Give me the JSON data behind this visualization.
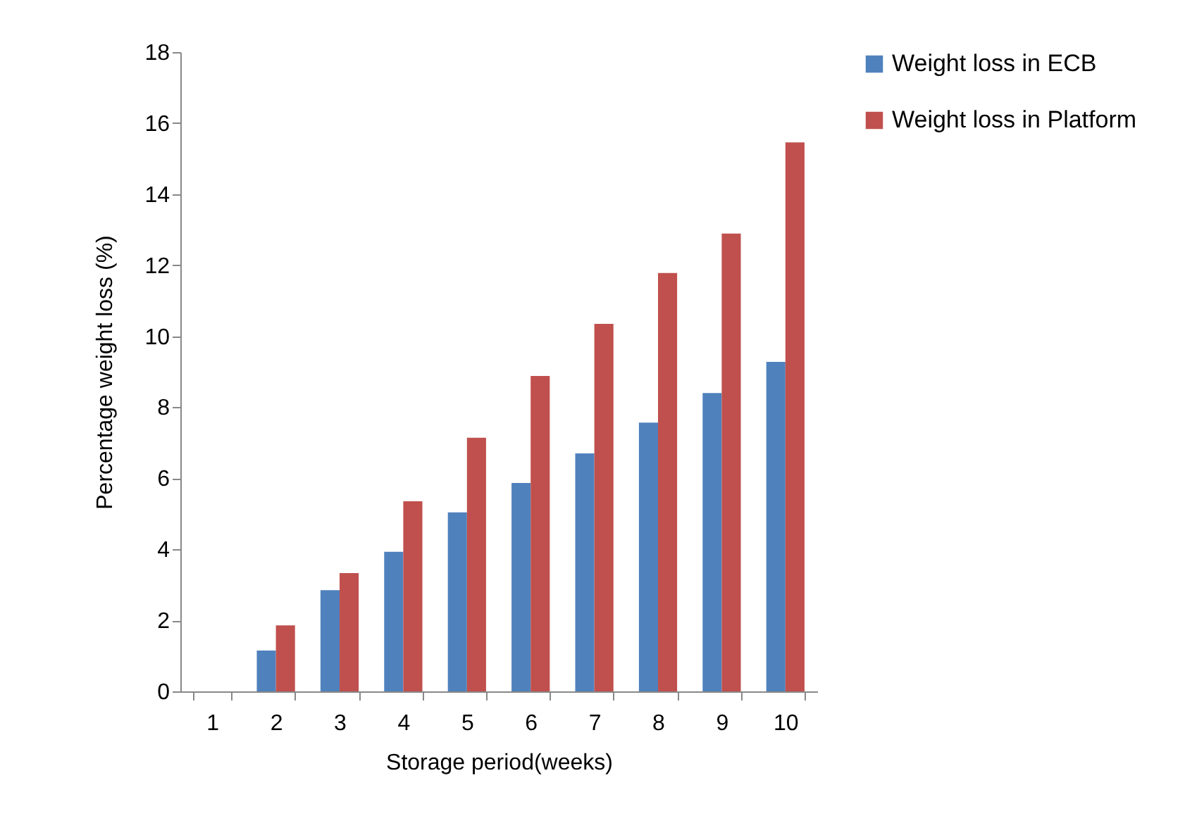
{
  "chart_data": {
    "type": "bar",
    "xlabel": "Storage period(weeks)",
    "ylabel": "Percentage weight loss (%)",
    "categories": [
      "1",
      "2",
      "3",
      "4",
      "5",
      "6",
      "7",
      "8",
      "9",
      "10"
    ],
    "series": [
      {
        "name": "Weight loss in ECB",
        "color": "#4f81bd",
        "values": [
          0,
          1.15,
          2.85,
          3.93,
          5.04,
          5.87,
          6.7,
          7.57,
          8.4,
          9.28
        ]
      },
      {
        "name": "Weight loss in Platform",
        "color": "#c0504d",
        "values": [
          0,
          1.86,
          3.33,
          5.35,
          7.14,
          8.88,
          10.35,
          11.78,
          12.89,
          15.46
        ]
      }
    ],
    "ylim": [
      0,
      18
    ],
    "yticks": [
      0,
      2,
      4,
      6,
      8,
      10,
      12,
      14,
      16,
      18
    ],
    "grid": false,
    "legend": "right"
  }
}
